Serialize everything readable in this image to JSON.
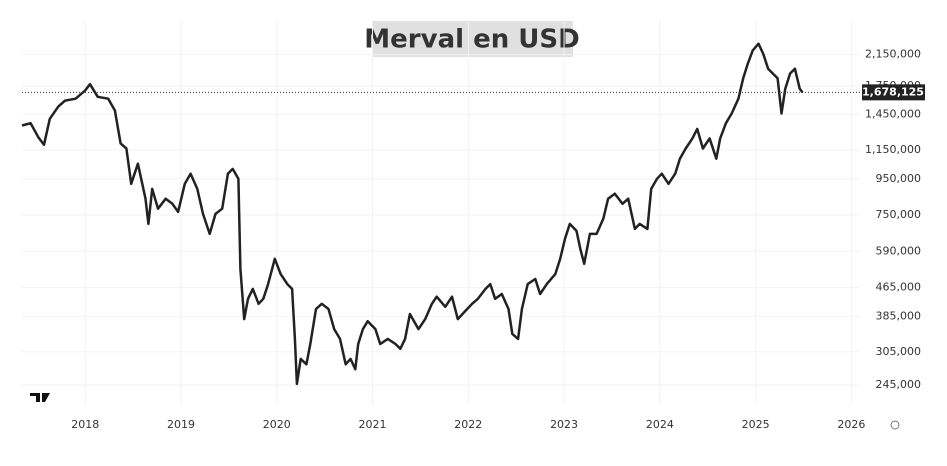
{
  "chart_data": {
    "type": "line",
    "title": "Merval en USD",
    "log_scale": true,
    "grid": true,
    "color": "#222222",
    "x": [
      2017.34,
      2017.43,
      2017.51,
      2017.57,
      2017.63,
      2017.72,
      2017.79,
      2017.9,
      2018.0,
      2018.05,
      2018.13,
      2018.24,
      2018.31,
      2018.37,
      2018.43,
      2018.48,
      2018.55,
      2018.63,
      2018.66,
      2018.7,
      2018.76,
      2018.84,
      2018.91,
      2018.97,
      2019.04,
      2019.1,
      2019.17,
      2019.23,
      2019.3,
      2019.36,
      2019.43,
      2019.49,
      2019.54,
      2019.6,
      2019.62,
      2019.66,
      2019.7,
      2019.75,
      2019.81,
      2019.86,
      2019.91,
      2019.98,
      2020.04,
      2020.11,
      2020.16,
      2020.19,
      2020.21,
      2020.25,
      2020.31,
      2020.35,
      2020.41,
      2020.47,
      2020.54,
      2020.6,
      2020.66,
      2020.72,
      2020.77,
      2020.82,
      2020.85,
      2020.9,
      2020.95,
      2021.03,
      2021.08,
      2021.16,
      2021.24,
      2021.29,
      2021.34,
      2021.39,
      2021.48,
      2021.55,
      2021.62,
      2021.67,
      2021.76,
      2021.83,
      2021.89,
      2021.97,
      2022.04,
      2022.1,
      2022.18,
      2022.23,
      2022.28,
      2022.35,
      2022.42,
      2022.46,
      2022.52,
      2022.56,
      2022.62,
      2022.7,
      2022.75,
      2022.82,
      2022.91,
      2022.96,
      2023.01,
      2023.06,
      2023.13,
      2023.17,
      2023.21,
      2023.27,
      2023.34,
      2023.41,
      2023.46,
      2023.53,
      2023.61,
      2023.67,
      2023.74,
      2023.79,
      2023.87,
      2023.91,
      2023.97,
      2024.02,
      2024.09,
      2024.16,
      2024.21,
      2024.27,
      2024.34,
      2024.39,
      2024.45,
      2024.52,
      2024.59,
      2024.63,
      2024.69,
      2024.75,
      2024.82,
      2024.87,
      2024.92,
      2024.97,
      2025.03,
      2025.08,
      2025.13,
      2025.18,
      2025.23,
      2025.27,
      2025.31,
      2025.36,
      2025.41,
      2025.46,
      2025.49
    ],
    "values": [
      1350000,
      1370000,
      1250000,
      1190000,
      1410000,
      1530000,
      1590000,
      1610000,
      1700000,
      1770000,
      1630000,
      1610000,
      1490000,
      1200000,
      1160000,
      920000,
      1050000,
      834000,
      707000,
      890000,
      781000,
      834000,
      807000,
      765000,
      920000,
      983000,
      890000,
      755000,
      662000,
      755000,
      781000,
      983000,
      1015000,
      951000,
      526000,
      378000,
      432000,
      461000,
      418000,
      432000,
      476000,
      562000,
      509000,
      476000,
      461000,
      332000,
      247000,
      291000,
      281000,
      321000,
      404000,
      418000,
      404000,
      354000,
      332000,
      281000,
      291000,
      272000,
      321000,
      354000,
      373000,
      354000,
      321000,
      332000,
      321000,
      311000,
      332000,
      391000,
      354000,
      378000,
      418000,
      438000,
      410000,
      438000,
      378000,
      399000,
      418000,
      432000,
      461000,
      476000,
      432000,
      446000,
      404000,
      343000,
      332000,
      404000,
      476000,
      492000,
      446000,
      476000,
      509000,
      562000,
      641000,
      707000,
      675000,
      600000,
      544000,
      662000,
      662000,
      731000,
      834000,
      862000,
      807000,
      834000,
      684000,
      707000,
      684000,
      890000,
      951000,
      983000,
      920000,
      983000,
      1085000,
      1160000,
      1240000,
      1320000,
      1160000,
      1240000,
      1085000,
      1240000,
      1370000,
      1460000,
      1610000,
      1840000,
      2030000,
      2210000,
      2310000,
      2160000,
      1960000,
      1900000,
      1840000,
      1460000,
      1720000,
      1900000,
      1960000,
      1720000,
      1678125
    ],
    "xlim": [
      2017.34,
      2026.09
    ],
    "xticks": [
      2018,
      2019,
      2020,
      2021,
      2022,
      2023,
      2024,
      2025,
      2026
    ],
    "ylim": [
      215000,
      2700000
    ],
    "yticks": [
      {
        "value": 245000,
        "label": "245,000"
      },
      {
        "value": 305000,
        "label": "305,000"
      },
      {
        "value": 385000,
        "label": "385,000"
      },
      {
        "value": 465000,
        "label": "465,000"
      },
      {
        "value": 590000,
        "label": "590,000"
      },
      {
        "value": 750000,
        "label": "750,000"
      },
      {
        "value": 950000,
        "label": "950,000"
      },
      {
        "value": 1150000,
        "label": "1,150,000"
      },
      {
        "value": 1450000,
        "label": "1,450,000"
      },
      {
        "value": 1750000,
        "label": "1,750,000"
      },
      {
        "value": 2150000,
        "label": "2,150,000"
      }
    ],
    "last_price": {
      "value": 1678125,
      "label": "1,678,125"
    }
  }
}
